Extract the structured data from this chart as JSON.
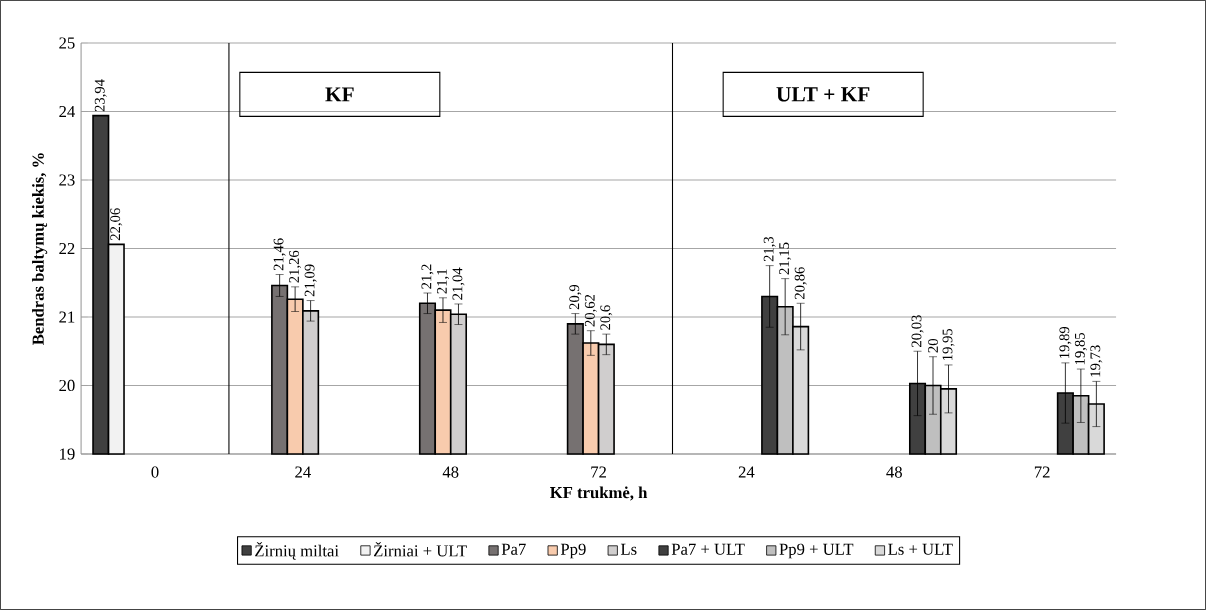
{
  "chart_data": {
    "type": "bar",
    "xlabel": "KF trukmė, h",
    "ylabel": "Bendras baltymų kiekis, %",
    "categories": [
      "0",
      "24",
      "48",
      "72",
      "24",
      "48",
      "72"
    ],
    "ylim": [
      19,
      25
    ],
    "yticks": [
      19,
      20,
      21,
      22,
      23,
      24,
      25
    ],
    "grid": "y",
    "legend": "bottom",
    "annotations": [
      "KF",
      "ULT + KF"
    ],
    "series": [
      {
        "name": "Žirnių miltai",
        "color": "#404040",
        "values": [
          23.94,
          null,
          null,
          null,
          null,
          null,
          null
        ],
        "value_labels": [
          "23,94",
          null,
          null,
          null,
          null,
          null,
          null
        ]
      },
      {
        "name": "Žirniai + ULT",
        "color": "#f2f2f2",
        "values": [
          22.06,
          null,
          null,
          null,
          null,
          null,
          null
        ],
        "value_labels": [
          "22,06",
          null,
          null,
          null,
          null,
          null,
          null
        ]
      },
      {
        "name": "Pa7",
        "color": "#767171",
        "values": [
          null,
          21.46,
          21.2,
          20.9,
          null,
          null,
          null
        ],
        "errors": [
          null,
          0.16,
          0.15,
          0.15,
          null,
          null,
          null
        ],
        "value_labels": [
          null,
          "21,46",
          "21,2",
          "20,9",
          null,
          null,
          null
        ]
      },
      {
        "name": "Pp9",
        "color": "#f8cbad",
        "values": [
          null,
          21.26,
          21.1,
          20.62,
          null,
          null,
          null
        ],
        "errors": [
          null,
          0.18,
          0.18,
          0.18,
          null,
          null,
          null
        ],
        "value_labels": [
          null,
          "21,26",
          "21,1",
          "20,62",
          null,
          null,
          null
        ]
      },
      {
        "name": "Ls",
        "color": "#d0cece",
        "values": [
          null,
          21.09,
          21.04,
          20.6,
          null,
          null,
          null
        ],
        "errors": [
          null,
          0.15,
          0.15,
          0.15,
          null,
          null,
          null
        ],
        "value_labels": [
          null,
          "21,09",
          "21,04",
          "20,6",
          null,
          null,
          null
        ]
      },
      {
        "name": "Pa7 + ULT",
        "color": "#404040",
        "values": [
          null,
          null,
          null,
          null,
          21.3,
          20.03,
          19.89
        ],
        "errors": [
          null,
          null,
          null,
          null,
          0.45,
          0.47,
          0.44
        ],
        "value_labels": [
          null,
          null,
          null,
          null,
          "21,3",
          "20,03",
          "19,89"
        ]
      },
      {
        "name": "Pp9 + ULT",
        "color": "#bfbfbf",
        "values": [
          null,
          null,
          null,
          null,
          21.15,
          20,
          19.85
        ],
        "errors": [
          null,
          null,
          null,
          null,
          0.41,
          0.42,
          0.39
        ],
        "value_labels": [
          null,
          null,
          null,
          null,
          "21,15",
          "20",
          "19,85"
        ]
      },
      {
        "name": "Ls + ULT",
        "color": "#d9d9d9",
        "values": [
          null,
          null,
          null,
          null,
          20.86,
          19.95,
          19.73
        ],
        "errors": [
          null,
          null,
          null,
          null,
          0.34,
          0.35,
          0.33
        ],
        "value_labels": [
          null,
          null,
          null,
          null,
          "20,86",
          "19,95",
          "19,73"
        ]
      }
    ]
  }
}
